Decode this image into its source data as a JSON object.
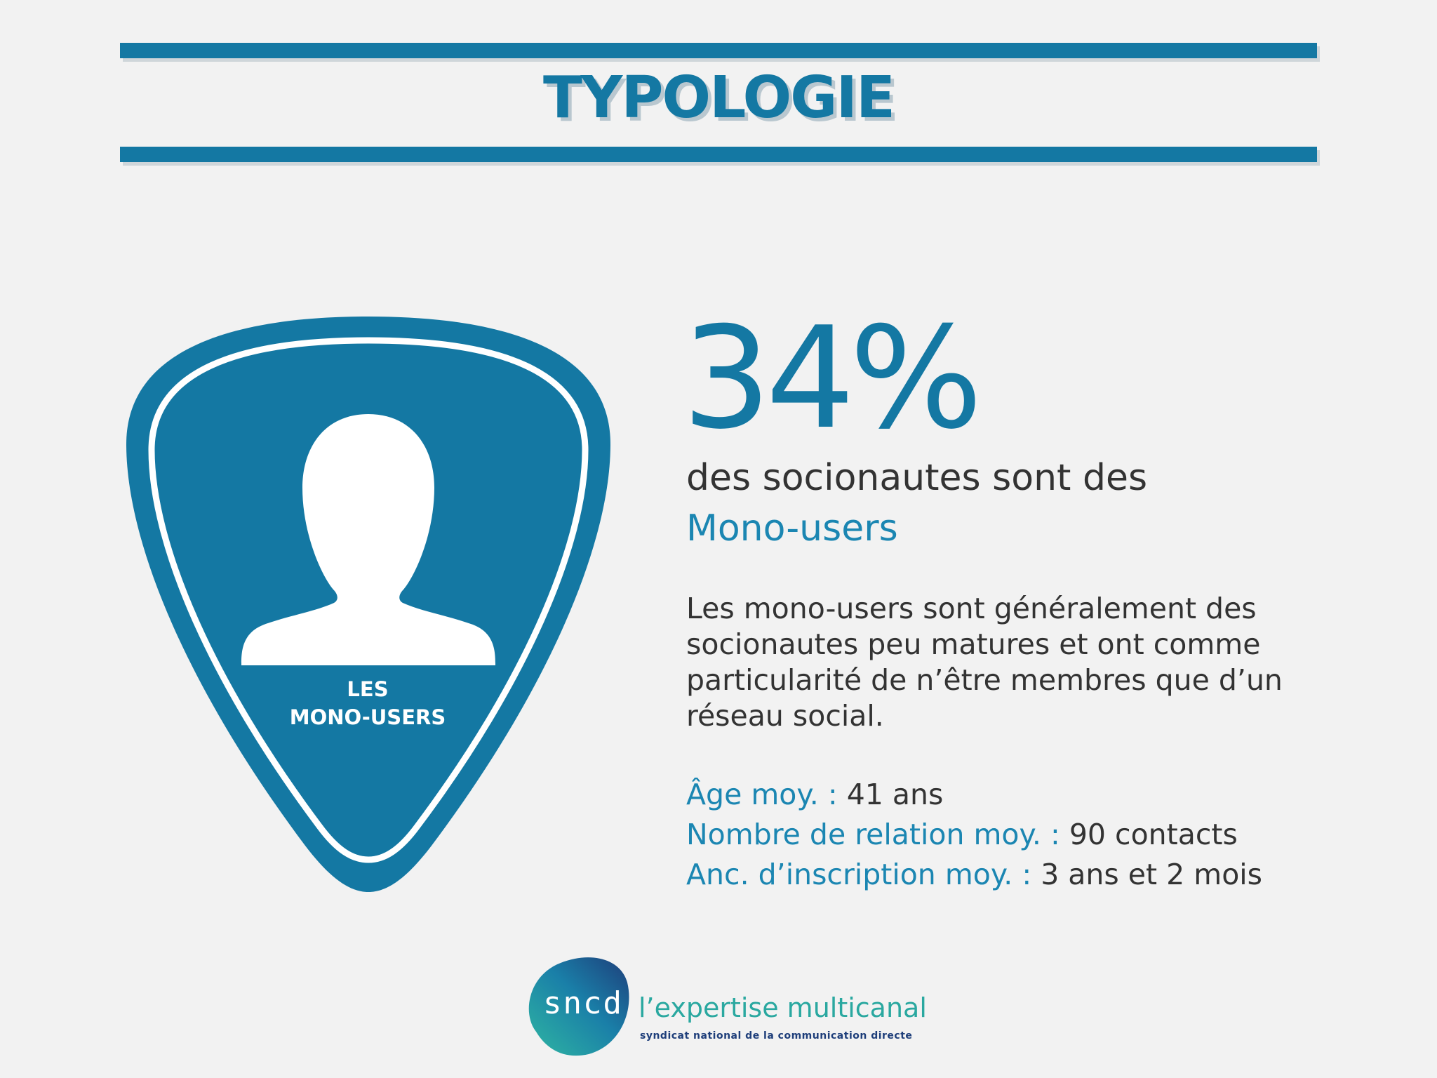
{
  "header": {
    "title": "TYPOLOGIE"
  },
  "badge": {
    "icon": "user-silhouette-icon",
    "label_line1": "LES",
    "label_line2": "MONO-USERS"
  },
  "stat": {
    "percent": "34%",
    "headline_line1": "des socionautes sont des",
    "headline_line2": "Mono-users"
  },
  "description": {
    "lines": [
      "Les mono-users sont généralement des",
      "socionautes peu matures et ont comme",
      "particularité de n’être membres que d’un",
      "réseau social."
    ]
  },
  "details": [
    {
      "label": "Âge moy. : ",
      "value": "41 ans"
    },
    {
      "label": "Nombre de relation moy. : ",
      "value": "90 contacts"
    },
    {
      "label": "Anc. d’inscription moy. : ",
      "value": "3 ans et 2 mois"
    }
  ],
  "logo": {
    "name": "sncd",
    "tagline": "l’expertise multicanal",
    "subtitle": "syndicat national de la communication directe"
  },
  "colors": {
    "background": "#f2f2f2",
    "accent": "#1478a3",
    "accent_text": "#1b86b2",
    "text": "#333333",
    "logo_teal": "#2aa8a0",
    "logo_navy": "#1e3e7a"
  }
}
